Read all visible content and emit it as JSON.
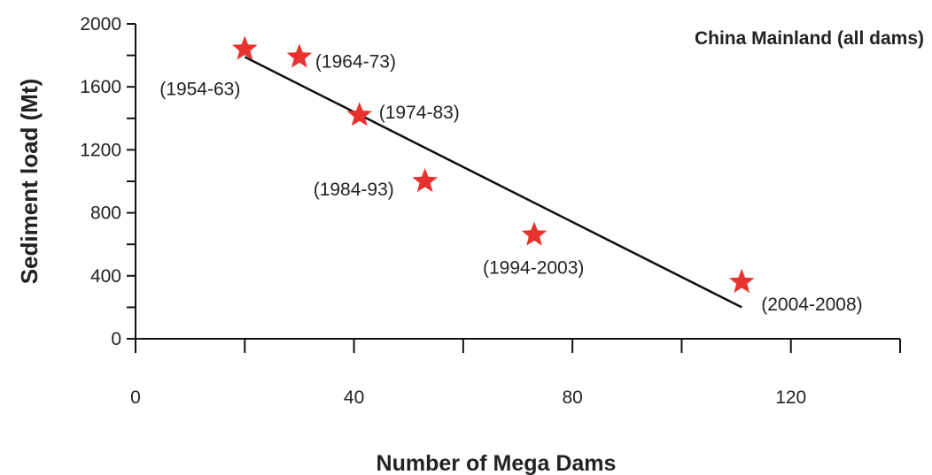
{
  "chart_data": {
    "type": "scatter",
    "title": "China Mainland (all dams)",
    "xlabel": "Number of Mega Dams",
    "ylabel": "Sediment load (Mt)",
    "xlim": [
      0,
      140
    ],
    "ylim": [
      0,
      2000
    ],
    "x_ticks": [
      0,
      40,
      80,
      120
    ],
    "y_ticks": [
      0,
      400,
      800,
      1200,
      1600,
      2000
    ],
    "grid": false,
    "marker": "star",
    "point_color": "#e8322f",
    "points": [
      {
        "x": 20,
        "y": 1840,
        "label": "(1954-63)"
      },
      {
        "x": 30,
        "y": 1790,
        "label": "(1964-73)"
      },
      {
        "x": 41,
        "y": 1420,
        "label": "(1974-83)"
      },
      {
        "x": 53,
        "y": 1000,
        "label": "(1984-93)"
      },
      {
        "x": 73,
        "y": 660,
        "label": "(1994-2003)"
      },
      {
        "x": 111,
        "y": 360,
        "label": "(2004-2008)"
      }
    ],
    "trendline": {
      "x": [
        20,
        111
      ],
      "y": [
        1790,
        200
      ]
    }
  }
}
